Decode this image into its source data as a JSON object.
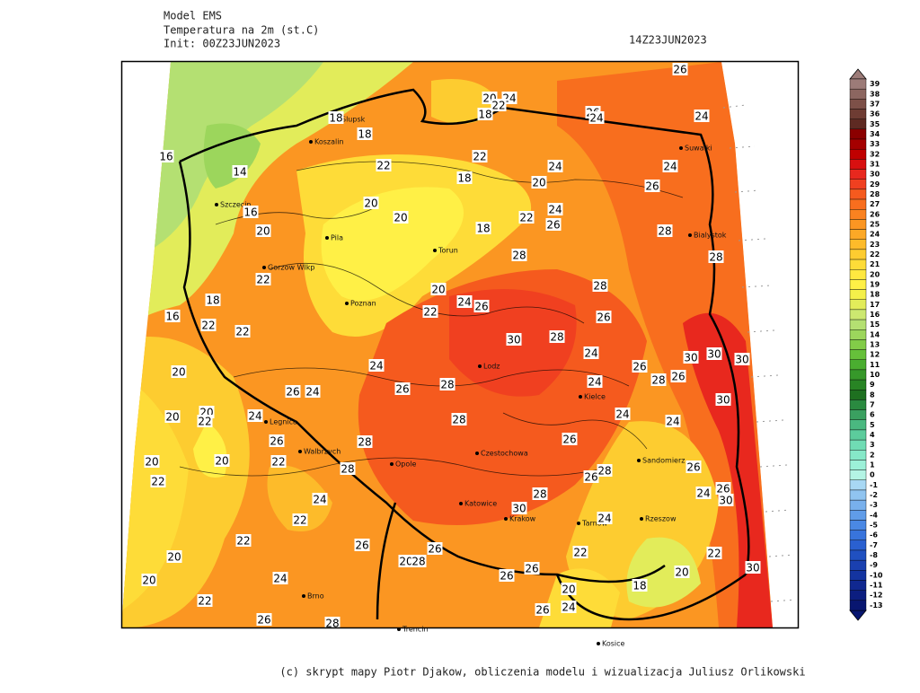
{
  "header": {
    "model": "Model EMS",
    "field": "Temperatura na 2m (st.C)",
    "init": "Init: 00Z23JUN2023",
    "valid": "14Z23JUN2023"
  },
  "colorbar": {
    "levels": [
      39,
      38,
      37,
      36,
      35,
      34,
      33,
      32,
      31,
      30,
      29,
      28,
      27,
      26,
      25,
      24,
      23,
      22,
      21,
      20,
      19,
      18,
      17,
      16,
      15,
      14,
      13,
      12,
      11,
      10,
      9,
      8,
      7,
      6,
      5,
      4,
      3,
      2,
      1,
      0,
      -1,
      -2,
      -3,
      -4,
      -5,
      -6,
      -7,
      -8,
      -9,
      -10,
      -11,
      -12,
      -13
    ],
    "colors": [
      "#9c7b78",
      "#8c6660",
      "#7d5048",
      "#6e3c33",
      "#5e2a22",
      "#8b0000",
      "#a50000",
      "#c00000",
      "#d81010",
      "#e8281e",
      "#f04020",
      "#f55a1e",
      "#f86e1e",
      "#fa8220",
      "#fb9622",
      "#fca826",
      "#fdbb2a",
      "#fdcc30",
      "#fedc38",
      "#ffe840",
      "#fff046",
      "#f4f04a",
      "#e2ec5a",
      "#cce870",
      "#b4e072",
      "#9cd65c",
      "#82cc48",
      "#66c03a",
      "#4aae30",
      "#36982a",
      "#288424",
      "#1e7020",
      "#2a8a40",
      "#3aa060",
      "#4ab880",
      "#5ccc9c",
      "#70dcb4",
      "#86e8c8",
      "#9cf0d8",
      "#b4f4e4",
      "#a8d8f4",
      "#90c4f0",
      "#78b0ec",
      "#609ce8",
      "#4a88e4",
      "#3874dc",
      "#2a60d0",
      "#2050c0",
      "#1a40b0",
      "#1434a0",
      "#102890",
      "#0c1e80",
      "#081670"
    ]
  },
  "map": {
    "contour_labels": [
      26,
      20,
      24,
      22,
      18,
      18,
      18,
      26,
      24,
      24,
      16,
      22,
      22,
      24,
      24,
      14,
      18,
      20,
      26,
      20,
      16,
      20,
      22,
      24,
      26,
      20,
      18,
      28,
      28,
      28,
      22,
      28,
      20,
      18,
      24,
      26,
      22,
      16,
      26,
      22,
      22,
      30,
      28,
      24,
      30,
      30,
      30,
      24,
      26,
      20,
      28,
      26,
      26,
      24,
      26,
      28,
      24,
      30,
      20,
      24,
      20,
      22,
      24,
      24,
      28,
      26,
      28,
      26,
      20,
      20,
      22,
      28,
      26,
      28,
      26,
      22,
      28,
      24,
      24,
      26,
      30,
      30,
      22,
      24,
      22,
      26,
      26,
      22,
      22,
      20,
      20,
      28,
      26,
      26,
      30,
      20,
      24,
      20,
      20,
      18,
      22,
      26,
      24,
      26,
      28
    ],
    "cities": [
      "Slupsk",
      "Koszalin",
      "Szczecin",
      "Pila",
      "Gorzow Wlkp",
      "Poznan",
      "Torun",
      "Lodz",
      "Kielce",
      "Suwalki",
      "Bialystok",
      "Opole",
      "Czestochowa",
      "Katowice",
      "Krakow",
      "Tarnow",
      "Rzeszow",
      "Sandomierz",
      "Walbrzych",
      "Legnica",
      "Brno",
      "Trencin",
      "Kosice"
    ]
  },
  "footer": "(c) skrypt mapy Piotr Djakow, obliczenia modelu i wizualizacja Juliusz Orlikowski"
}
